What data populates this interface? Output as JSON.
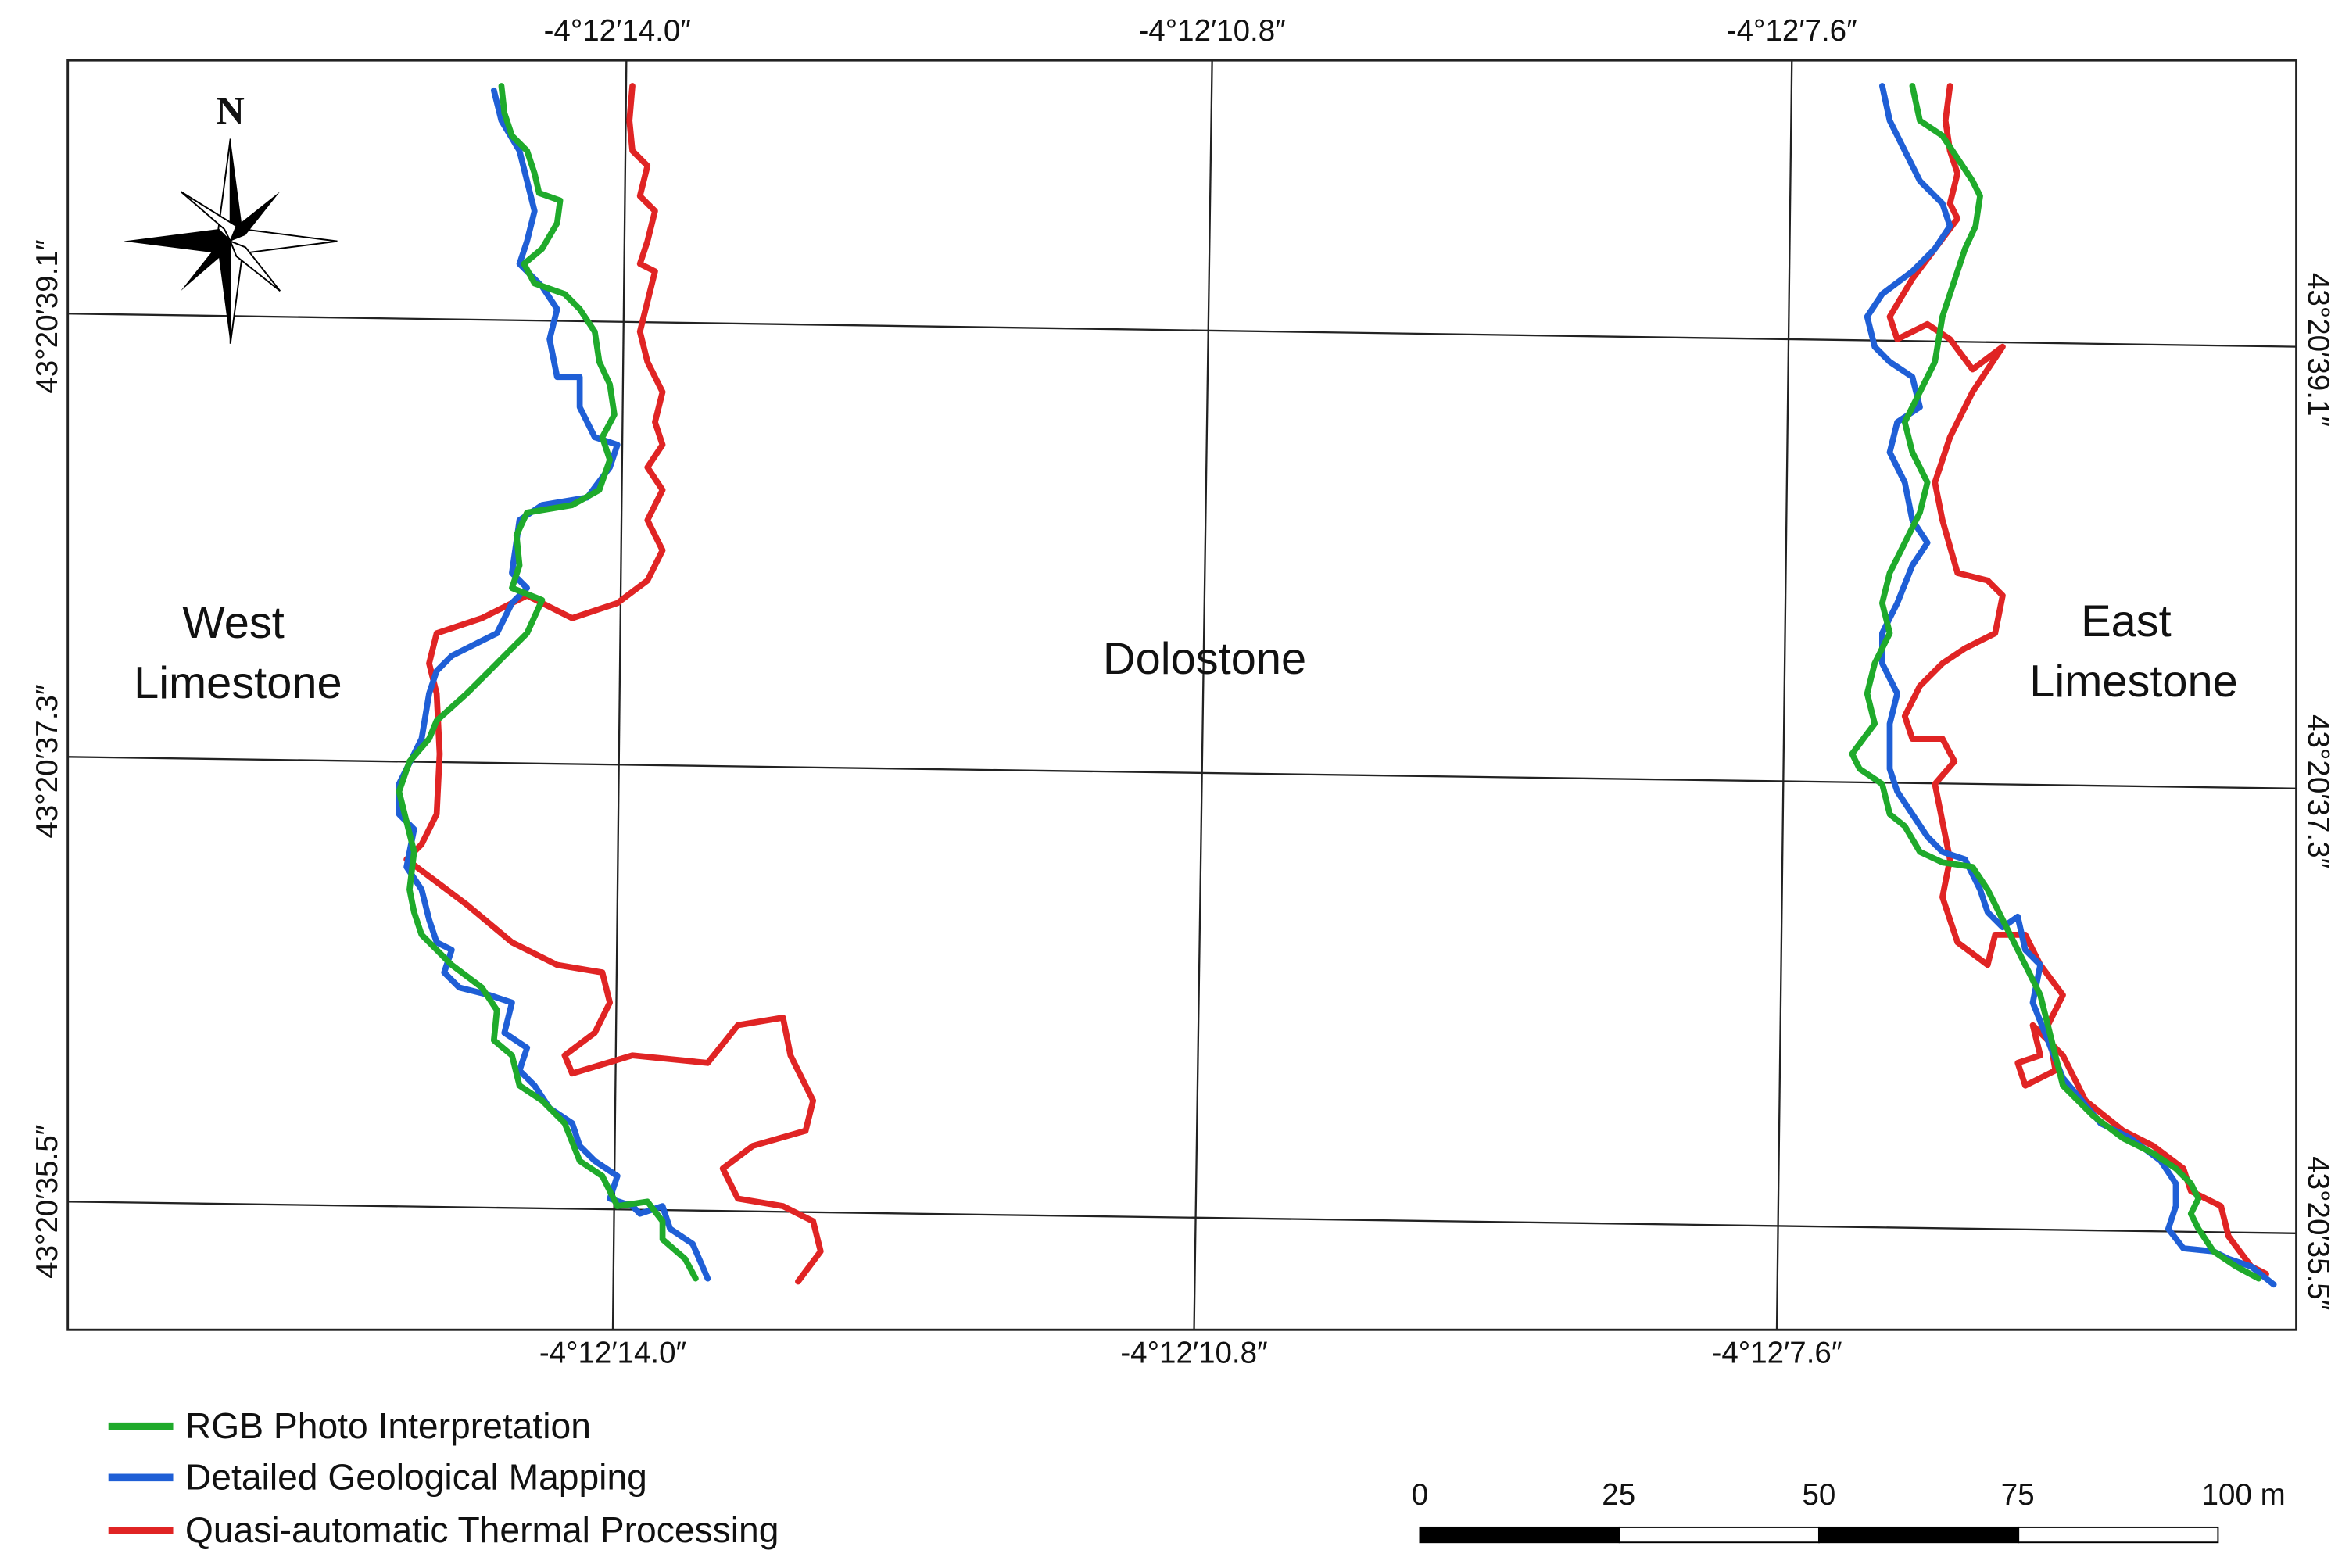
{
  "map": {
    "top_longitude_labels": [
      "-4°12′14.0″",
      "-4°12′10.8″",
      "-4°12′7.6″"
    ],
    "bottom_longitude_labels": [
      "-4°12′14.0″",
      "-4°12′10.8″",
      "-4°12′7.6″"
    ],
    "left_latitude_labels": [
      "43°20′39.1″",
      "43°20′37.3″",
      "43°20′35.5″"
    ],
    "right_latitude_labels": [
      "43°20′39.1″",
      "43°20′37.3″",
      "43°20′35.5″"
    ],
    "north_label": "N",
    "regions": {
      "west": [
        "West",
        "Limestone"
      ],
      "middle": "Dolostone",
      "east": [
        "East",
        "Limestone"
      ]
    },
    "legend": [
      {
        "label": "RGB Photo Interpretation",
        "color": "#1faa2b"
      },
      {
        "label": "Detailed Geological Mapping",
        "color": "#1f5fd6"
      },
      {
        "label": "Quasi-automatic Thermal Processing",
        "color": "#e02424"
      }
    ],
    "scale_bar": {
      "labels": [
        "0",
        "25",
        "50",
        "75",
        "100 m"
      ]
    }
  }
}
